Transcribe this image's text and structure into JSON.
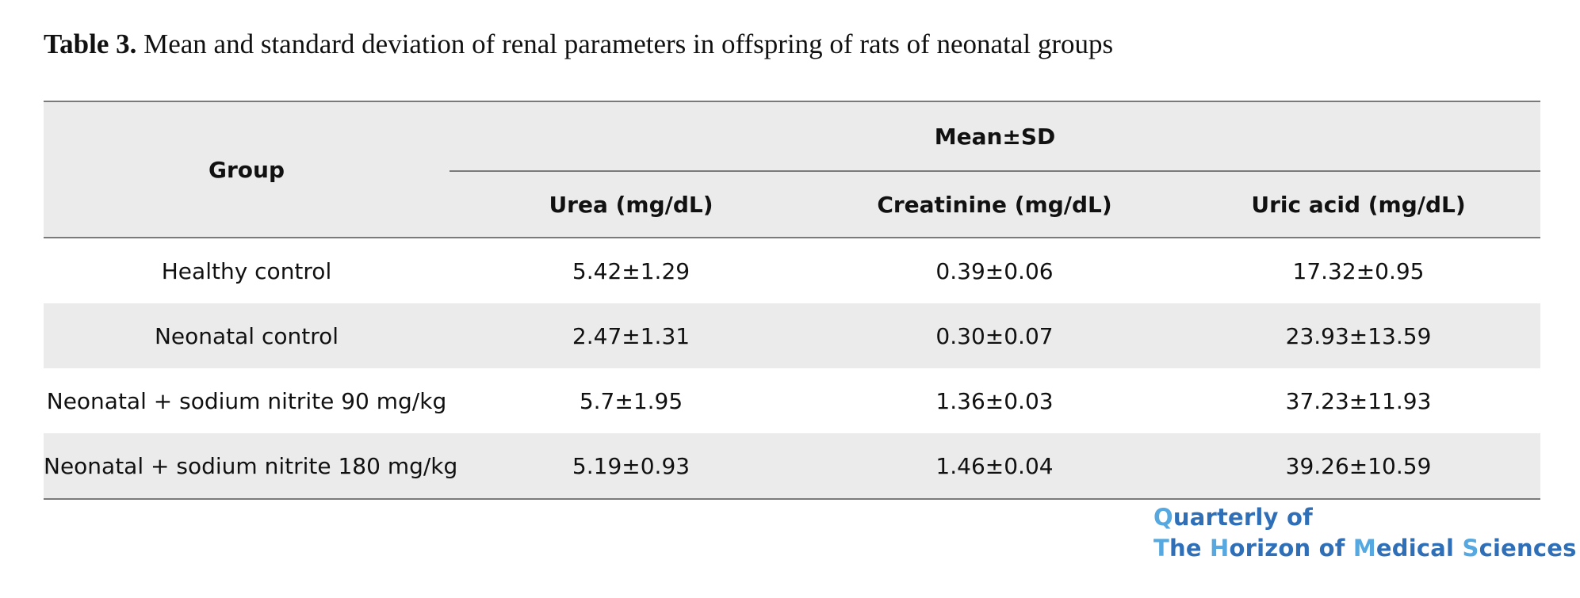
{
  "caption": {
    "label": "Table 3.",
    "text": " Mean and standard deviation of renal parameters in offspring of rats of neonatal groups"
  },
  "table": {
    "group_header": "Group",
    "span_header": "Mean±SD",
    "columns": [
      "Urea (mg/dL)",
      "Creatinine (mg/dL)",
      "Uric acid (mg/dL)"
    ],
    "rows": [
      {
        "group": "Healthy control",
        "urea": "5.42±1.29",
        "creatinine": "0.39±0.06",
        "uric_acid": "17.32±0.95"
      },
      {
        "group": "Neonatal control",
        "urea": "2.47±1.31",
        "creatinine": "0.30±0.07",
        "uric_acid": "23.93±13.59"
      },
      {
        "group": "Neonatal + sodium nitrite 90 mg/kg",
        "urea": "5.7±1.95",
        "creatinine": "1.36±0.03",
        "uric_acid": "37.23±11.93"
      },
      {
        "group": "Neonatal + sodium nitrite 180 mg/kg",
        "urea": "5.19±0.93",
        "creatinine": "1.46±0.04",
        "uric_acid": "39.26±10.59"
      }
    ]
  },
  "journal": {
    "line1": "Quarterly of",
    "line2": "The Horizon of Medical Sciences",
    "colors": {
      "primary": "#2f6fb7",
      "accent": "#55a8e0"
    }
  }
}
